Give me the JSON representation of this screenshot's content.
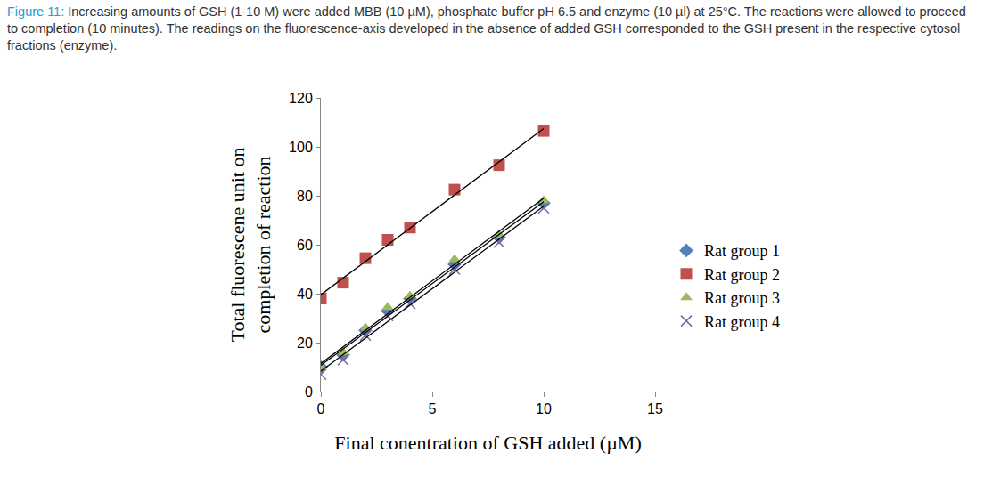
{
  "caption": {
    "label": "Figure 11:",
    "text": "Increasing amounts of GSH (1-10  M) were added MBB (10 µM), phosphate buffer pH 6.5 and enzyme (10 µl) at 25°C. The reactions were allowed to proceed to completion (10 minutes). The readings on the fluorescence-axis developed in the absence of added GSH corresponded to the GSH present in the respective cytosol fractions (enzyme)."
  },
  "chart_data": {
    "type": "scatter",
    "x_label": "Final conentration of GSH added (µM)",
    "y_label": "Total fluorescene unit on\ncompletion of reaction",
    "x": [
      0,
      1,
      2,
      3,
      4,
      6,
      8,
      10
    ],
    "series": [
      {
        "name": "Rat group 1",
        "color": "#4f81bd",
        "marker": "diamond",
        "line_style": "trendline",
        "values": [
          10,
          15,
          25,
          33,
          38,
          52,
          63,
          77
        ]
      },
      {
        "name": "Rat group 2",
        "color": "#c0504d",
        "marker": "square",
        "line_style": "trendline",
        "values": [
          38,
          44.5,
          54.5,
          62,
          67,
          82.5,
          92.5,
          106.5
        ]
      },
      {
        "name": "Rat group 3",
        "color": "#9bbb59",
        "marker": "triangle-up",
        "line_style": "trendline",
        "values": [
          10,
          16,
          26,
          34.5,
          39,
          54,
          64,
          78
        ]
      },
      {
        "name": "Rat group 4",
        "color": "#8064a2",
        "marker": "x-thin-open",
        "line_style": "trendline",
        "values": [
          7,
          13,
          23,
          31,
          36,
          50,
          61,
          75
        ]
      }
    ],
    "xlim": [
      0,
      15
    ],
    "xticks": [
      0,
      5,
      10,
      15
    ],
    "ylim": [
      0,
      120
    ],
    "yticks": [
      0,
      20,
      40,
      60,
      80,
      100,
      120
    ],
    "grid": false,
    "legend": "right"
  }
}
